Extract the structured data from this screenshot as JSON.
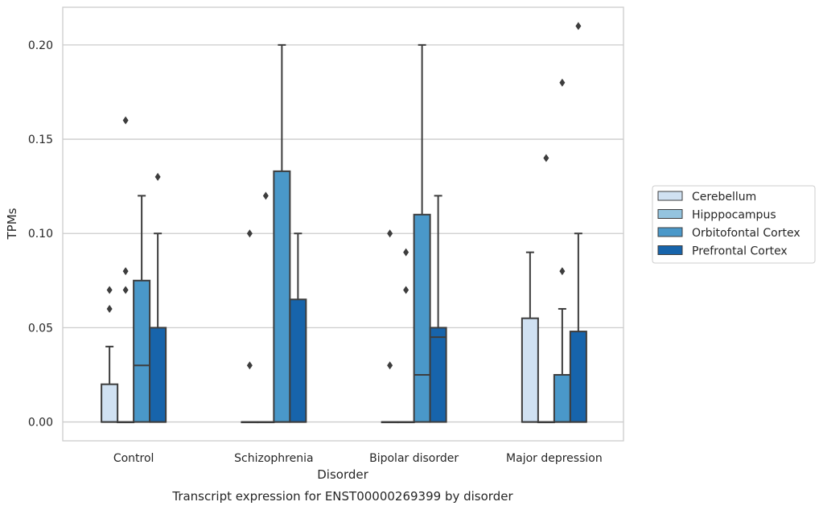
{
  "chart_data": {
    "type": "box",
    "title": "",
    "caption": "Transcript expression for ENST00000269399 by disorder",
    "xlabel": "Disorder",
    "ylabel": "TPMs",
    "ylim": [
      -0.01,
      0.22
    ],
    "yticks": [
      "0.00",
      "0.05",
      "0.10",
      "0.15",
      "0.20"
    ],
    "ytick_values": [
      0,
      0.05,
      0.1,
      0.15,
      0.2
    ],
    "grid": "horizontal",
    "legend_position": "right",
    "categories": [
      "Control",
      "Schizophrenia",
      "Bipolar disorder",
      "Major depression"
    ],
    "series": [
      {
        "name": "Cerebellum",
        "color": "#d0e1f2",
        "boxes": [
          {
            "q1": 0,
            "median": 0,
            "q3": 0.02,
            "whisker_low": 0,
            "whisker_high": 0.04,
            "outliers": [
              0.06,
              0.07
            ]
          },
          {
            "q1": 0,
            "median": 0,
            "q3": 0,
            "whisker_low": 0,
            "whisker_high": 0,
            "outliers": [
              0.03,
              0.1
            ]
          },
          {
            "q1": 0,
            "median": 0,
            "q3": 0,
            "whisker_low": 0,
            "whisker_high": 0,
            "outliers": [
              0.03,
              0.1
            ]
          },
          {
            "q1": 0,
            "median": 0,
            "q3": 0.055,
            "whisker_low": 0,
            "whisker_high": 0.09,
            "outliers": []
          }
        ]
      },
      {
        "name": "Hipppocampus",
        "color": "#94c4df",
        "boxes": [
          {
            "q1": 0,
            "median": 0,
            "q3": 0,
            "whisker_low": 0,
            "whisker_high": 0,
            "outliers": [
              0.07,
              0.08,
              0.16
            ]
          },
          {
            "q1": 0,
            "median": 0,
            "q3": 0,
            "whisker_low": 0,
            "whisker_high": 0,
            "outliers": [
              0.12
            ]
          },
          {
            "q1": 0,
            "median": 0,
            "q3": 0,
            "whisker_low": 0,
            "whisker_high": 0,
            "outliers": [
              0.07,
              0.09
            ]
          },
          {
            "q1": 0,
            "median": 0,
            "q3": 0,
            "whisker_low": 0,
            "whisker_high": 0,
            "outliers": [
              0.14
            ]
          }
        ]
      },
      {
        "name": "Orbitofontal Cortex",
        "color": "#4a98c9",
        "boxes": [
          {
            "q1": 0,
            "median": 0.03,
            "q3": 0.075,
            "whisker_low": 0,
            "whisker_high": 0.12,
            "outliers": []
          },
          {
            "q1": 0,
            "median": 0,
            "q3": 0.133,
            "whisker_low": 0,
            "whisker_high": 0.2,
            "outliers": []
          },
          {
            "q1": 0,
            "median": 0.025,
            "q3": 0.11,
            "whisker_low": 0,
            "whisker_high": 0.2,
            "outliers": []
          },
          {
            "q1": 0,
            "median": 0,
            "q3": 0.025,
            "whisker_low": 0,
            "whisker_high": 0.06,
            "outliers": [
              0.08,
              0.18
            ]
          }
        ]
      },
      {
        "name": "Prefrontal Cortex",
        "color": "#1764ab",
        "boxes": [
          {
            "q1": 0,
            "median": 0,
            "q3": 0.05,
            "whisker_low": 0,
            "whisker_high": 0.1,
            "outliers": [
              0.13
            ]
          },
          {
            "q1": 0,
            "median": 0,
            "q3": 0.065,
            "whisker_low": 0,
            "whisker_high": 0.1,
            "outliers": []
          },
          {
            "q1": 0,
            "median": 0.045,
            "q3": 0.05,
            "whisker_low": 0,
            "whisker_high": 0.12,
            "outliers": []
          },
          {
            "q1": 0,
            "median": 0,
            "q3": 0.048,
            "whisker_low": 0,
            "whisker_high": 0.1,
            "outliers": [
              0.21
            ]
          }
        ]
      }
    ]
  }
}
